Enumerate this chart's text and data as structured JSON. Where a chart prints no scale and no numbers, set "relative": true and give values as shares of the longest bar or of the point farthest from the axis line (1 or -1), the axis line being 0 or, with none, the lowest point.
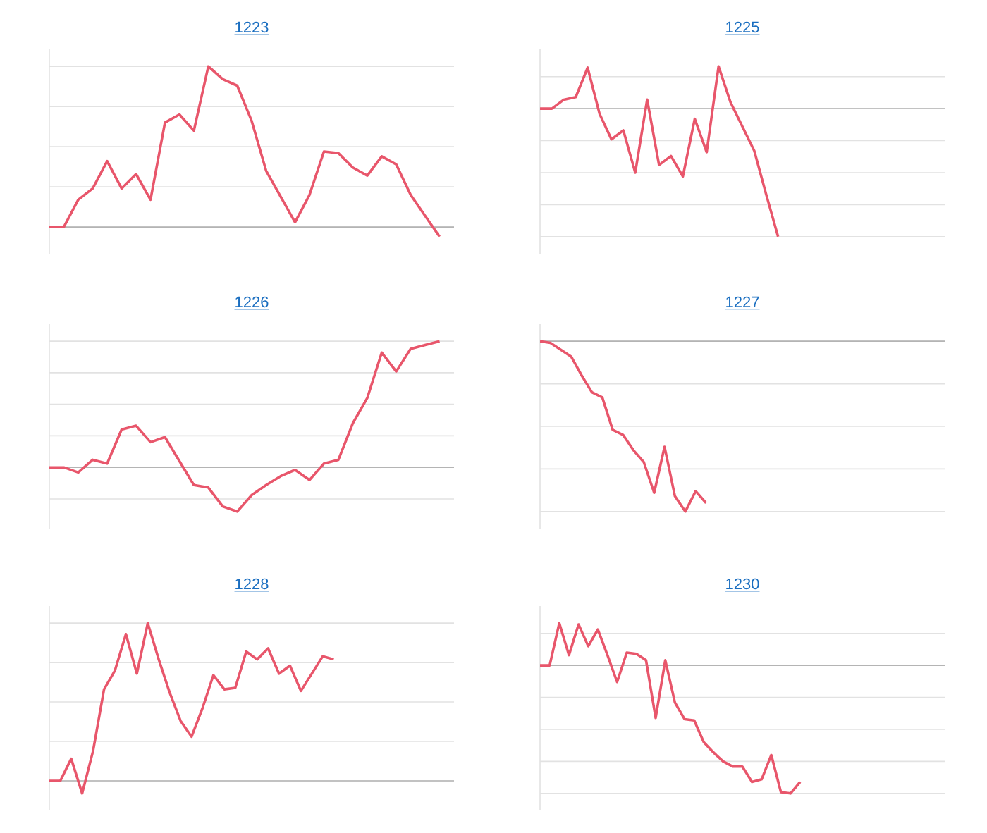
{
  "chart_data": [
    {
      "type": "line",
      "title": "1223",
      "relative": true,
      "grid": "y",
      "color": "#e8566b",
      "categories": [
        null,
        null,
        null,
        null,
        null,
        null,
        null,
        null,
        null,
        null,
        null,
        null,
        null,
        null,
        null,
        null,
        null,
        null,
        null,
        null,
        null,
        null,
        null,
        null,
        null,
        null,
        null,
        null,
        null
      ],
      "values": [
        0,
        0,
        0.17,
        0.24,
        0.41,
        0.24,
        0.33,
        0.17,
        0.65,
        0.7,
        0.6,
        1,
        0.92,
        0.88,
        0.66,
        0.35,
        0.19,
        0.03,
        0.2,
        0.47,
        0.46,
        0.37,
        0.32,
        0.44,
        0.39,
        0.2,
        0.07,
        -0.06,
        null
      ]
    },
    {
      "type": "line",
      "title": "1225",
      "relative": true,
      "grid": "y",
      "color": "#e8566b",
      "categories": [
        null,
        null,
        null,
        null,
        null,
        null,
        null,
        null,
        null,
        null,
        null,
        null,
        null,
        null,
        null,
        null,
        null,
        null,
        null,
        null,
        null,
        null,
        null,
        null,
        null,
        null,
        null,
        null,
        null,
        null,
        null,
        null,
        null,
        null,
        null
      ],
      "values": [
        0,
        0,
        0.07,
        0.09,
        0.32,
        -0.04,
        -0.24,
        -0.17,
        -0.5,
        0.07,
        -0.44,
        -0.37,
        -0.53,
        -0.08,
        -0.34,
        0.33,
        0.05,
        -0.14,
        -0.33,
        -0.67,
        -1,
        null,
        null,
        null,
        null,
        null,
        null,
        null,
        null,
        null,
        null,
        null,
        null,
        null,
        null
      ]
    },
    {
      "type": "line",
      "title": "1226",
      "relative": true,
      "grid": "y",
      "color": "#e8566b",
      "categories": [
        null,
        null,
        null,
        null,
        null,
        null,
        null,
        null,
        null,
        null,
        null,
        null,
        null,
        null,
        null,
        null,
        null,
        null,
        null,
        null,
        null,
        null,
        null,
        null,
        null,
        null,
        null,
        null,
        null
      ],
      "values": [
        0,
        0,
        -0.04,
        0.06,
        0.03,
        0.3,
        0.33,
        0.2,
        0.24,
        0.05,
        -0.14,
        -0.16,
        -0.31,
        -0.35,
        -0.22,
        -0.14,
        -0.07,
        -0.02,
        -0.1,
        0.03,
        0.06,
        0.35,
        0.55,
        0.91,
        0.76,
        0.94,
        0.97,
        1,
        null
      ]
    },
    {
      "type": "line",
      "title": "1227",
      "relative": true,
      "grid": "y",
      "color": "#e8566b",
      "categories": [
        null,
        null,
        null,
        null,
        null,
        null,
        null,
        null,
        null,
        null,
        null,
        null,
        null,
        null,
        null,
        null,
        null,
        null,
        null,
        null,
        null,
        null,
        null,
        null,
        null,
        null,
        null,
        null,
        null,
        null,
        null,
        null,
        null,
        null,
        null,
        null,
        null,
        null,
        null,
        null
      ],
      "values": [
        0,
        -0.01,
        -0.05,
        -0.09,
        -0.2,
        -0.3,
        -0.33,
        -0.52,
        -0.55,
        -0.64,
        -0.71,
        -0.89,
        -0.62,
        -0.91,
        -1,
        -0.88,
        -0.95,
        null,
        null,
        null,
        null,
        null,
        null,
        null,
        null,
        null,
        null,
        null,
        null,
        null,
        null,
        null,
        null,
        null,
        null,
        null,
        null,
        null,
        null,
        null
      ]
    },
    {
      "type": "line",
      "title": "1228",
      "relative": true,
      "grid": "y",
      "color": "#e8566b",
      "categories": [
        null,
        null,
        null,
        null,
        null,
        null,
        null,
        null,
        null,
        null,
        null,
        null,
        null,
        null,
        null,
        null,
        null,
        null,
        null,
        null,
        null,
        null,
        null,
        null,
        null,
        null,
        null,
        null,
        null,
        null,
        null,
        null,
        null,
        null,
        null,
        null,
        null,
        null
      ],
      "values": [
        0,
        0,
        0.14,
        -0.08,
        0.19,
        0.58,
        0.7,
        0.93,
        0.68,
        1,
        0.77,
        0.56,
        0.38,
        0.28,
        0.46,
        0.67,
        0.58,
        0.59,
        0.82,
        0.77,
        0.84,
        0.68,
        0.73,
        0.57,
        0.68,
        0.79,
        0.77,
        null,
        null,
        null,
        null,
        null,
        null,
        null,
        null,
        null,
        null,
        null
      ]
    },
    {
      "type": "line",
      "title": "1230",
      "relative": true,
      "grid": "y",
      "color": "#e8566b",
      "categories": [
        null,
        null,
        null,
        null,
        null,
        null,
        null,
        null,
        null,
        null,
        null,
        null,
        null,
        null,
        null,
        null,
        null,
        null,
        null,
        null,
        null,
        null,
        null,
        null,
        null,
        null,
        null,
        null,
        null,
        null,
        null,
        null,
        null,
        null,
        null,
        null,
        null,
        null,
        null,
        null,
        null,
        null,
        null
      ],
      "values": [
        0,
        0,
        0.33,
        0.08,
        0.32,
        0.15,
        0.28,
        0.08,
        -0.13,
        0.1,
        0.09,
        0.04,
        -0.41,
        0.04,
        -0.29,
        -0.42,
        -0.43,
        -0.6,
        -0.68,
        -0.75,
        -0.79,
        -0.79,
        -0.91,
        -0.89,
        -0.7,
        -0.99,
        -1,
        -0.91,
        null,
        null,
        null,
        null,
        null,
        null,
        null,
        null,
        null,
        null,
        null,
        null,
        null,
        null,
        null
      ]
    }
  ]
}
